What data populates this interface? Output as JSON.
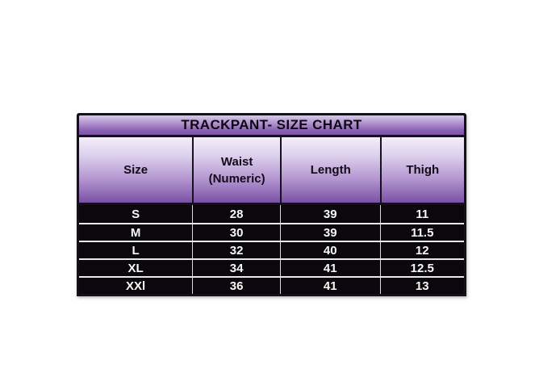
{
  "chart_data": {
    "type": "table",
    "title": "TRACKPANT- SIZE CHART",
    "columns": [
      "Size",
      "Waist (Numeric)",
      "Length",
      "Thigh"
    ],
    "rows": [
      [
        "S",
        "28",
        "39",
        "11"
      ],
      [
        "M",
        "30",
        "39",
        "11.5"
      ],
      [
        "L",
        "32",
        "40",
        "12"
      ],
      [
        "XL",
        "34",
        "41",
        "12.5"
      ],
      [
        "XXl",
        "36",
        "41",
        "13"
      ]
    ],
    "layout": {
      "legend": "none",
      "grid": "table-borders",
      "title_position": "top-banner"
    }
  },
  "table": {
    "title": "TRACKPANT- SIZE CHART",
    "header": {
      "size": "Size",
      "waist_line1": "Waist",
      "waist_line2": "(Numeric)",
      "length": "Length",
      "thigh": "Thigh"
    }
  },
  "colors": {
    "page_background": "#fefefe",
    "purple_gradient_light": "#f4effa",
    "purple_gradient_dark": "#7b52a6",
    "title_gradient_top": "#d6cae8",
    "border_black": "#150f1a",
    "data_row_background": "#0b080d",
    "data_text": "#f8f8f8",
    "header_text": "#120a18",
    "row_separator": "#e9e9e9"
  }
}
